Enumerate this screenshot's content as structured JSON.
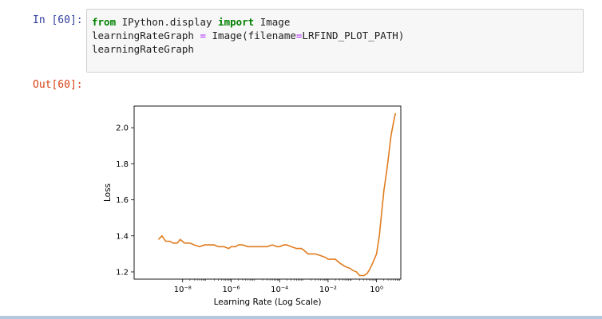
{
  "notebook": {
    "in_prompt": "In [60]:",
    "out_prompt": "Out[60]:",
    "code": {
      "line1": {
        "kw_from": "from",
        "module": " IPython.display ",
        "kw_import": "import",
        "name": " Image"
      },
      "line2": {
        "lhs": "learningRateGraph ",
        "eq": "=",
        "rhs": " Image(filename",
        "eq2": "=",
        "arg": "LRFIND_PLOT_PATH)"
      },
      "line3": "learningRateGraph"
    }
  },
  "chart_data": {
    "type": "line",
    "title": "",
    "xlabel": "Learning Rate (Log Scale)",
    "ylabel": "Loss",
    "xscale": "log",
    "xlim": [
      1e-10,
      10
    ],
    "ylim": [
      1.16,
      2.12
    ],
    "xticks": [
      "10⁻⁸",
      "10⁻⁶",
      "10⁻⁴",
      "10⁻²",
      "10⁰"
    ],
    "yticks": [
      "1.2",
      "1.4",
      "1.6",
      "1.8",
      "2.0"
    ],
    "ytick_values": [
      1.2,
      1.4,
      1.6,
      1.8,
      2.0
    ],
    "xtick_values": [
      1e-08,
      1e-06,
      0.0001,
      0.01,
      1
    ],
    "grid": false,
    "series": [
      {
        "color": "#e07c1f",
        "x": [
          1e-09,
          1.4e-09,
          2e-09,
          3e-09,
          4e-09,
          6e-09,
          8e-09,
          1.2e-08,
          1.6e-08,
          2e-08,
          3e-08,
          5e-08,
          8e-08,
          1e-07,
          1.3e-07,
          2e-07,
          3e-07,
          5e-07,
          8e-07,
          1e-06,
          1.5e-06,
          2e-06,
          3e-06,
          5e-06,
          8e-06,
          1e-05,
          1.5e-05,
          2e-05,
          3e-05,
          5e-05,
          8e-05,
          0.0001,
          0.00015,
          0.0002,
          0.0003,
          0.0005,
          0.0008,
          0.001,
          0.0015,
          0.002,
          0.003,
          0.005,
          0.008,
          0.01,
          0.015,
          0.02,
          0.03,
          0.05,
          0.08,
          0.1,
          0.15,
          0.2,
          0.3,
          0.4,
          0.5,
          0.7,
          1.0,
          1.3,
          1.6,
          2.0,
          2.5,
          3.0,
          3.5,
          4.0,
          5.0,
          6.0
        ],
        "y": [
          1.38,
          1.4,
          1.37,
          1.37,
          1.36,
          1.36,
          1.38,
          1.36,
          1.36,
          1.36,
          1.35,
          1.34,
          1.35,
          1.35,
          1.35,
          1.35,
          1.34,
          1.34,
          1.33,
          1.34,
          1.34,
          1.35,
          1.35,
          1.34,
          1.34,
          1.34,
          1.34,
          1.34,
          1.34,
          1.35,
          1.34,
          1.34,
          1.35,
          1.35,
          1.34,
          1.33,
          1.33,
          1.32,
          1.3,
          1.3,
          1.3,
          1.29,
          1.28,
          1.27,
          1.27,
          1.27,
          1.25,
          1.23,
          1.22,
          1.21,
          1.2,
          1.18,
          1.18,
          1.19,
          1.21,
          1.25,
          1.3,
          1.4,
          1.52,
          1.65,
          1.74,
          1.82,
          1.9,
          1.96,
          2.03,
          2.08
        ]
      }
    ]
  }
}
